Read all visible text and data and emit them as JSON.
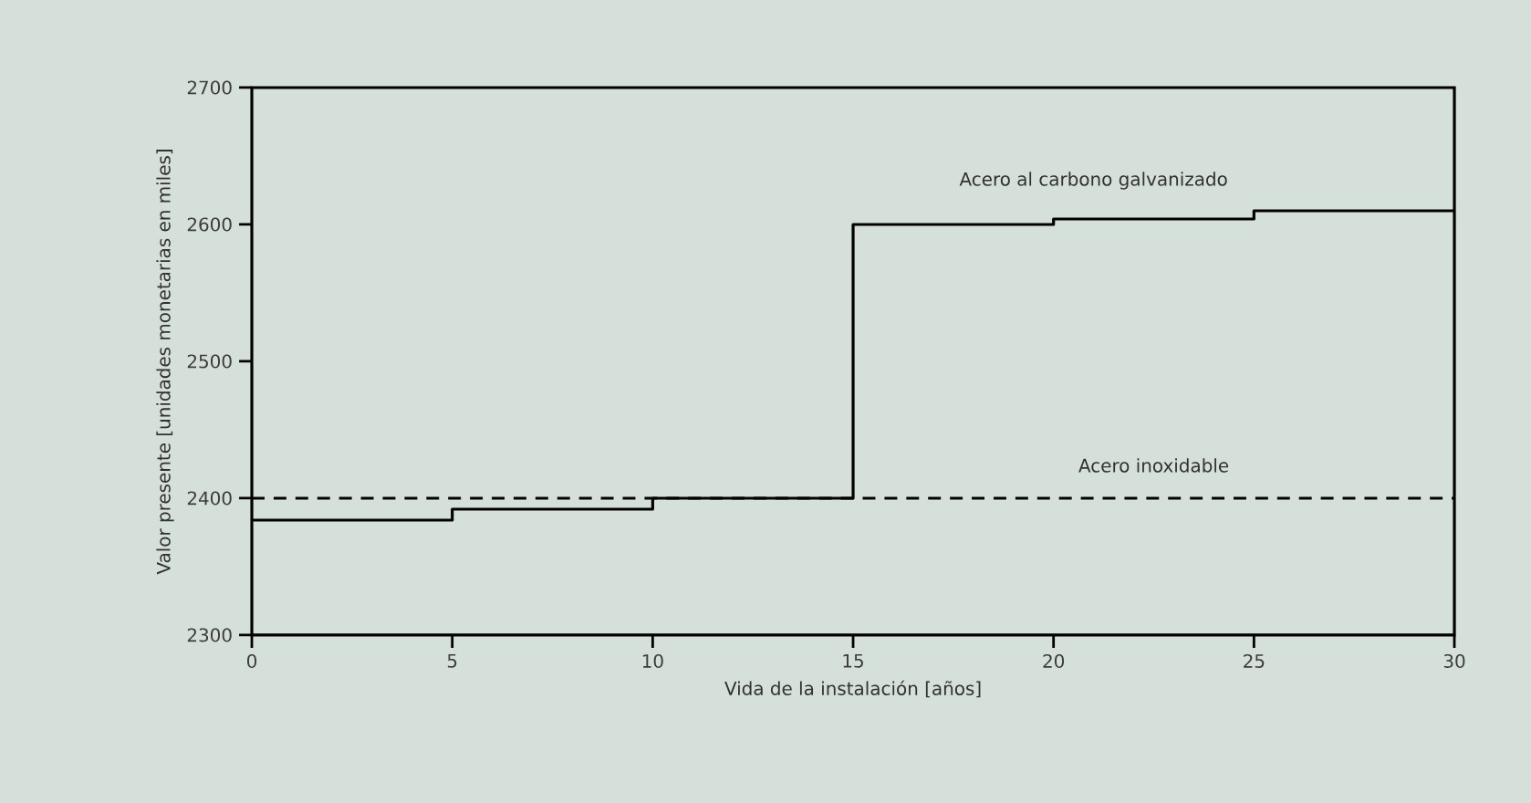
{
  "chart_data": {
    "type": "step",
    "xlabel": "Vida de la instalación [años]",
    "ylabel": "Valor presente [unidades monetarias en miles]",
    "x": [
      0,
      5,
      10,
      15,
      20,
      25,
      30
    ],
    "series": [
      {
        "name": "Acero al carbono galvanizado",
        "color": "#000000",
        "line_style": "solid",
        "values": [
          2384,
          2392,
          2400,
          2600,
          2604,
          2610,
          2610
        ]
      },
      {
        "name": "Acero inoxidable",
        "color": "#000000",
        "type": "line",
        "line_style": "dashed",
        "values": [
          2400,
          2400,
          2400,
          2400,
          2400,
          2400,
          2400
        ]
      }
    ],
    "xlim": [
      0,
      30
    ],
    "ylim": [
      2300,
      2700
    ],
    "xticks": [
      0,
      5,
      10,
      15,
      20,
      25,
      30
    ],
    "yticks": [
      2300,
      2400,
      2500,
      2600,
      2700
    ],
    "grid": false,
    "legend": false,
    "marker": "none"
  }
}
